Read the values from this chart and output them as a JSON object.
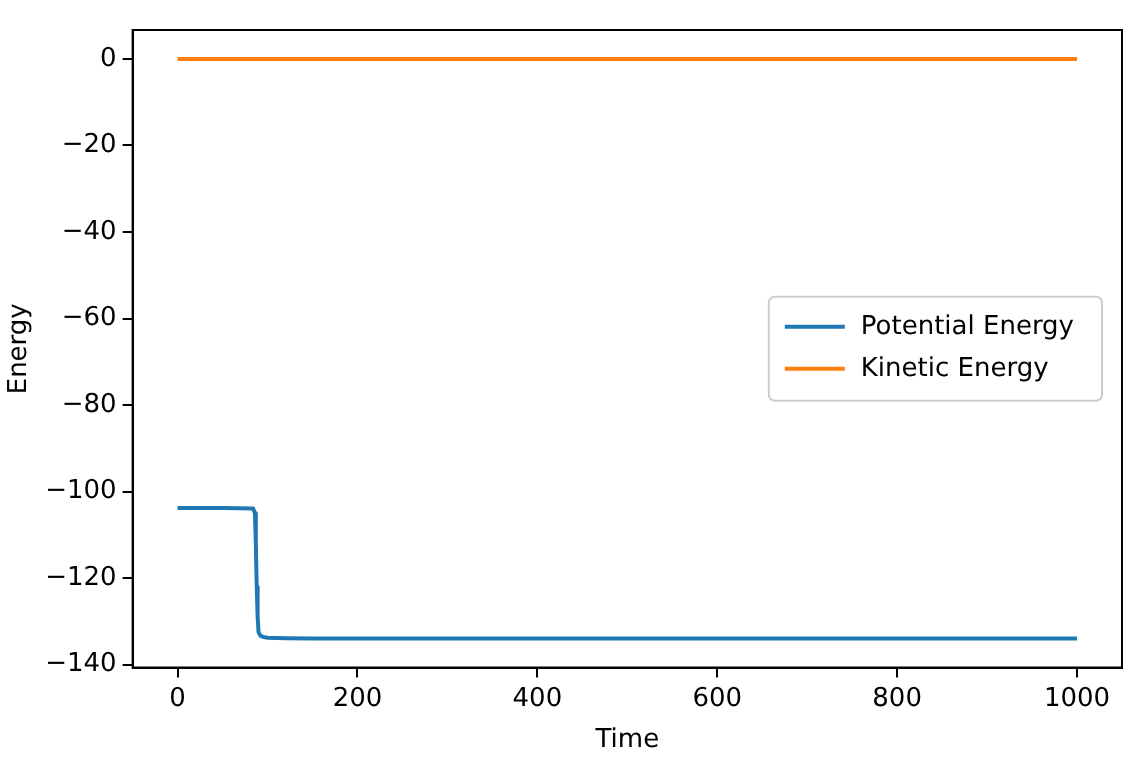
{
  "chart_data": {
    "type": "line",
    "xlabel": "Time",
    "ylabel": "Energy",
    "xlim": [
      -50,
      1050
    ],
    "ylim": [
      -140.7,
      6.7
    ],
    "xticks": [
      0,
      200,
      400,
      600,
      800,
      1000
    ],
    "yticks": [
      -140,
      -120,
      -100,
      -80,
      -60,
      -40,
      -20,
      0
    ],
    "grid": false,
    "legend": "right",
    "marker": "none",
    "line_style": "solid",
    "series": [
      {
        "name": "Potential Energy",
        "color": "#1f77b4",
        "x": [
          0,
          50,
          84,
          86,
          87,
          88,
          89,
          90,
          92,
          95,
          100,
          120,
          150,
          200,
          400,
          600,
          800,
          1000
        ],
        "values": [
          -103.8,
          -103.8,
          -103.9,
          -105,
          -112,
          -122,
          -129,
          -132.5,
          -133.3,
          -133.6,
          -133.8,
          -133.9,
          -134,
          -134,
          -134,
          -134,
          -134,
          -134
        ]
      },
      {
        "name": "Kinetic Energy",
        "color": "#ff7f0e",
        "x": [
          0,
          1000
        ],
        "values": [
          0,
          0
        ]
      }
    ]
  }
}
